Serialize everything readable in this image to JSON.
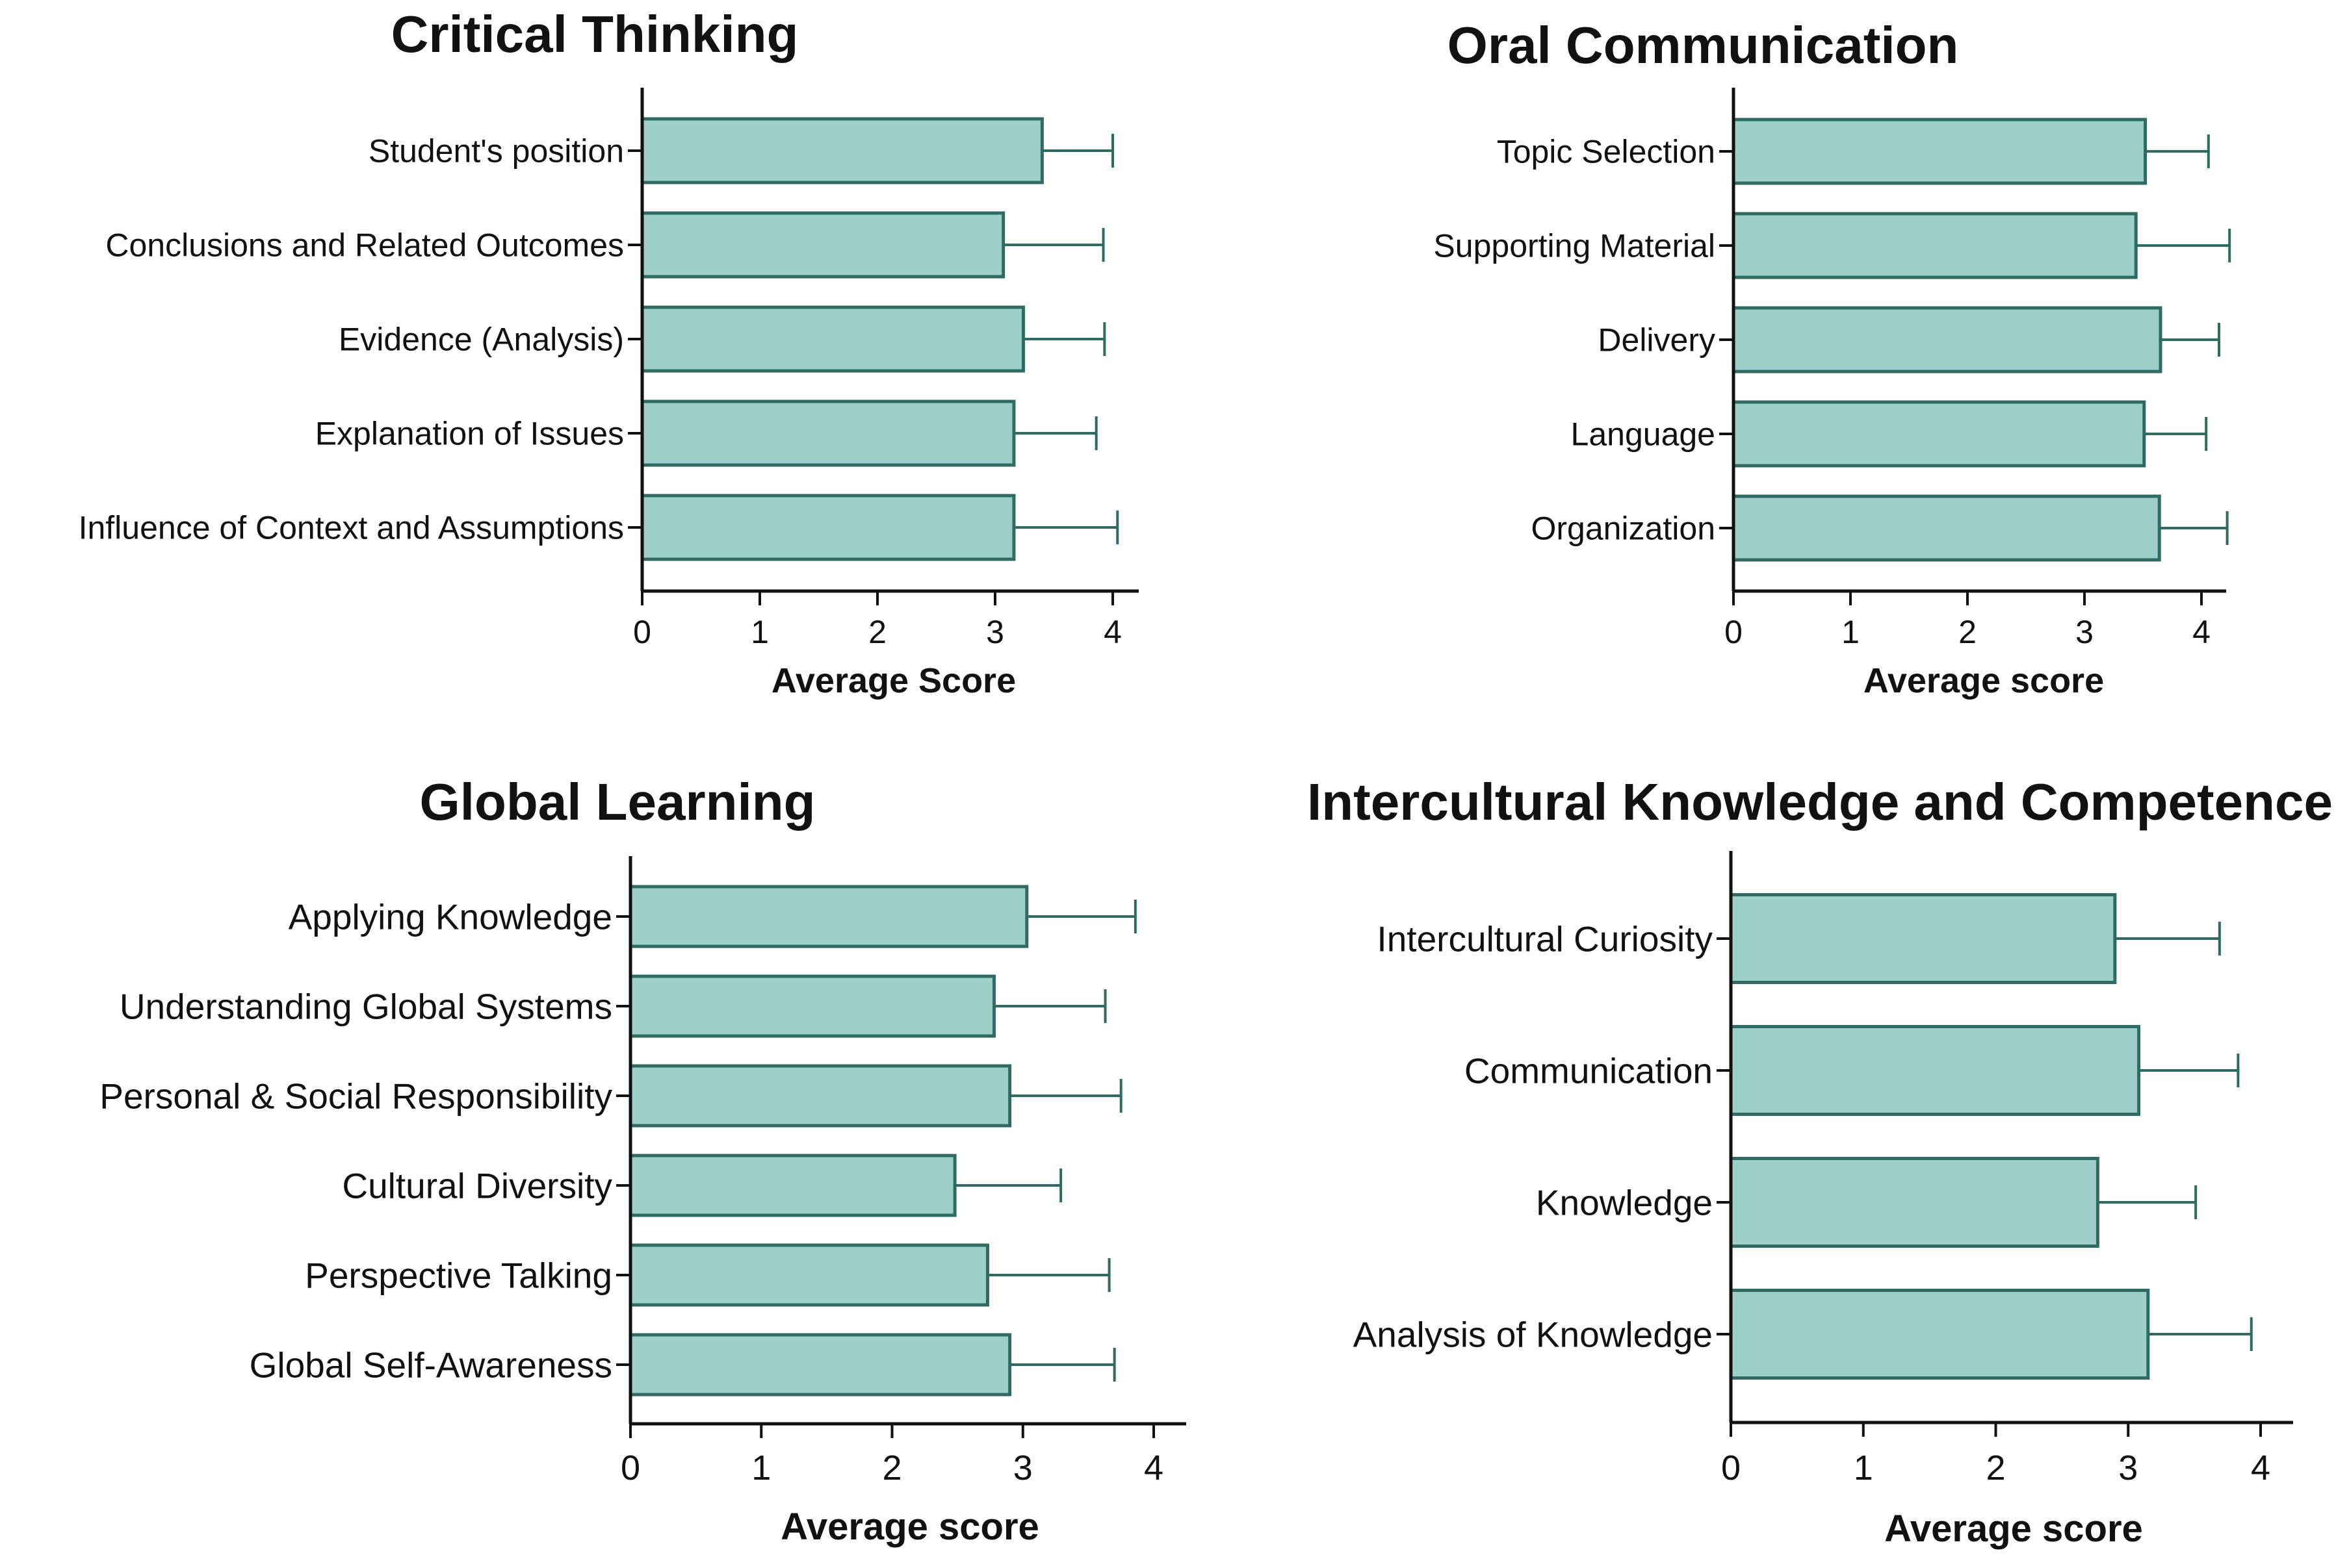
{
  "colors": {
    "bar_fill": "#9dd0cb",
    "bar_stroke": "#2f6b63",
    "error_bar": "#2f6b63",
    "axis": "#111111",
    "text": "#111111"
  },
  "chart_data": [
    {
      "type": "bar",
      "orientation": "horizontal",
      "title": "Critical Thinking",
      "xlabel": "Average Score",
      "ylabel": "",
      "xlim": [
        0,
        4.2
      ],
      "xticks": [
        "0",
        "1",
        "2",
        "3",
        "4"
      ],
      "grid": false,
      "categories": [
        "Student's position",
        "Conclusions and Related Outcomes",
        "Evidence (Analysis)",
        "Explanation of Issues",
        "Influence of Context and Assumptions"
      ],
      "values": [
        3.4,
        3.07,
        3.24,
        3.16,
        3.16
      ],
      "error_upper": [
        4.0,
        3.92,
        3.93,
        3.86,
        4.04
      ]
    },
    {
      "type": "bar",
      "orientation": "horizontal",
      "title": "Oral Communication",
      "xlabel": "Average score",
      "ylabel": "",
      "xlim": [
        0,
        4.25
      ],
      "xticks": [
        "0",
        "1",
        "2",
        "3",
        "4"
      ],
      "grid": false,
      "categories": [
        "Topic Selection",
        "Supporting Material",
        "Delivery",
        "Language",
        "Organization"
      ],
      "values": [
        3.52,
        3.44,
        3.65,
        3.51,
        3.64
      ],
      "error_upper": [
        4.06,
        4.24,
        4.15,
        4.04,
        4.22
      ]
    },
    {
      "type": "bar",
      "orientation": "horizontal",
      "title": "Global Learning",
      "xlabel": "Average score",
      "ylabel": "",
      "xlim": [
        0,
        4.25
      ],
      "xticks": [
        "0",
        "1",
        "2",
        "3",
        "4"
      ],
      "grid": false,
      "categories": [
        "Applying Knowledge",
        "Understanding Global Systems",
        "Personal & Social Responsibility",
        "Cultural Diversity",
        "Perspective Talking",
        "Global Self-Awareness"
      ],
      "values": [
        3.03,
        2.78,
        2.9,
        2.48,
        2.73,
        2.9
      ],
      "error_upper": [
        3.86,
        3.63,
        3.75,
        3.29,
        3.66,
        3.7
      ]
    },
    {
      "type": "bar",
      "orientation": "horizontal",
      "title": "Intercultural Knowledge and Competence",
      "xlabel": "Average score",
      "ylabel": "",
      "xlim": [
        0,
        4.25
      ],
      "xticks": [
        "0",
        "1",
        "2",
        "3",
        "4"
      ],
      "grid": false,
      "categories": [
        "Intercultural Curiosity",
        "Communication",
        "Knowledge",
        "Analysis of Knowledge"
      ],
      "values": [
        2.9,
        3.08,
        2.77,
        3.15
      ],
      "error_upper": [
        3.69,
        3.83,
        3.51,
        3.93
      ]
    }
  ]
}
